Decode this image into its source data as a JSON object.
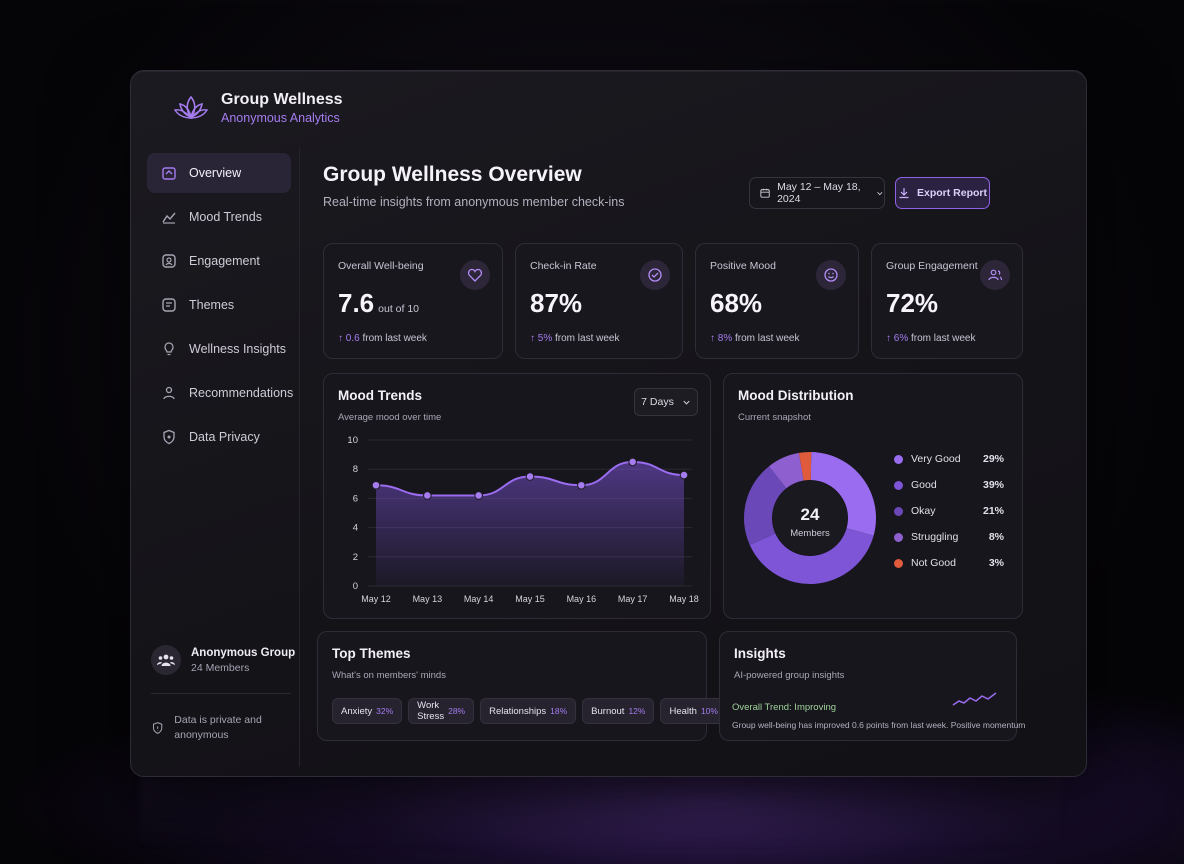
{
  "brand": {
    "title": "Group Wellness",
    "subtitle": "Anonymous Analytics",
    "icon": "lotus-icon",
    "accent": "#a57cf0"
  },
  "sidebar": {
    "items": [
      {
        "label": "Overview",
        "icon": "home-icon",
        "active": true
      },
      {
        "label": "Mood Trends",
        "icon": "chart-icon",
        "active": false
      },
      {
        "label": "Engagement",
        "icon": "engagement-icon",
        "active": false
      },
      {
        "label": "Themes",
        "icon": "tag-icon",
        "active": false
      },
      {
        "label": "Wellness Insights",
        "icon": "bulb-icon",
        "active": false
      },
      {
        "label": "Recommendations",
        "icon": "user-heart-icon",
        "active": false
      },
      {
        "label": "Data Privacy",
        "icon": "shield-icon",
        "active": false
      }
    ],
    "group": {
      "name": "Anonymous Group",
      "members": "24 Members"
    },
    "privacy_note": "Data is private and anonymous"
  },
  "header": {
    "title": "Group Wellness Overview",
    "subtitle": "Real-time insights from anonymous member check-ins",
    "date_range": "May 12 – May 18, 2024",
    "export_label": "Export Report"
  },
  "cards": [
    {
      "label": "Overall Well-being",
      "value": "7.6",
      "unit": "out of 10",
      "delta": "0.6",
      "delta_text": "from last week",
      "icon": "heart-icon"
    },
    {
      "label": "Check-in Rate",
      "value": "87%",
      "unit": "",
      "delta": "5%",
      "delta_text": "from last week",
      "icon": "check-circle-icon"
    },
    {
      "label": "Positive Mood",
      "value": "68%",
      "unit": "",
      "delta": "8%",
      "delta_text": "from last week",
      "icon": "smile-icon"
    },
    {
      "label": "Group Engagement",
      "value": "72%",
      "unit": "",
      "delta": "6%",
      "delta_text": "from last week",
      "icon": "users-icon"
    }
  ],
  "mood_trends": {
    "title": "Mood Trends",
    "subtitle": "Average mood over time",
    "range_select": "7 Days"
  },
  "mood_distribution": {
    "title": "Mood Distribution",
    "subtitle": "Current snapshot",
    "center_value": "24",
    "center_label": "Members",
    "legend": [
      {
        "name": "Very Good",
        "pct": "29%",
        "color": "#9a6cf0"
      },
      {
        "name": "Good",
        "pct": "39%",
        "color": "#7d55d6"
      },
      {
        "name": "Okay",
        "pct": "21%",
        "color": "#6a48b8"
      },
      {
        "name": "Struggling",
        "pct": "8%",
        "color": "#8e5fcf"
      },
      {
        "name": "Not Good",
        "pct": "3%",
        "color": "#e05a3c"
      }
    ]
  },
  "top_themes": {
    "title": "Top Themes",
    "subtitle": "What's on members' minds",
    "chips": [
      {
        "name": "Anxiety",
        "pct": "32%"
      },
      {
        "name": "Work Stress",
        "pct": "28%"
      },
      {
        "name": "Relationships",
        "pct": "18%"
      },
      {
        "name": "Burnout",
        "pct": "12%"
      },
      {
        "name": "Health",
        "pct": "10%"
      }
    ]
  },
  "insights": {
    "title": "Insights",
    "subtitle": "AI-powered group insights",
    "trend": "Overall Trend: Improving",
    "text": "Group well-being has improved 0.6 points from last week. Positive momentum"
  },
  "chart_data": [
    {
      "type": "area",
      "categories": [
        "May 12",
        "May 13",
        "May 14",
        "May 15",
        "May 16",
        "May 17",
        "May 18"
      ],
      "values": [
        6.9,
        6.2,
        6.2,
        7.5,
        6.9,
        8.5,
        7.6
      ],
      "ylim": [
        0,
        10
      ],
      "yticks": [
        0,
        2,
        4,
        6,
        8,
        10
      ],
      "color": "#9a6cf0",
      "grid": true
    },
    {
      "type": "pie",
      "categories": [
        "Very Good",
        "Good",
        "Okay",
        "Struggling",
        "Not Good"
      ],
      "values": [
        29,
        39,
        21,
        8,
        3
      ]
    }
  ]
}
